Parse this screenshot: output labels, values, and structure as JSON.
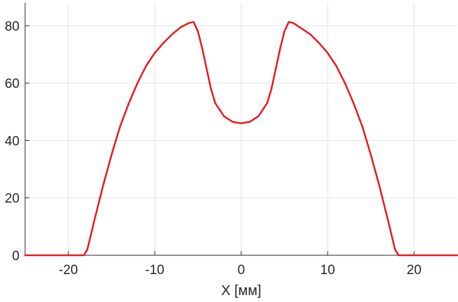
{
  "chart_data": {
    "type": "line",
    "title": "",
    "xlabel": "X [мм]",
    "ylabel": "",
    "xlim": [
      -25,
      25
    ],
    "ylim": [
      0,
      88
    ],
    "grid": true,
    "legend": "none",
    "xticks": [
      -20,
      -10,
      0,
      10,
      20
    ],
    "xtick_labels": [
      "-20",
      "-10",
      "0",
      "10",
      "20"
    ],
    "yticks": [
      0,
      20,
      40,
      60,
      80
    ],
    "ytick_labels": [
      "0",
      "20",
      "40",
      "60",
      "80"
    ],
    "colors": {
      "series": "#e8191e",
      "grid": "#e3e3e3",
      "axes": "#262626"
    },
    "series": [
      {
        "x": [
          -25,
          -18.2,
          -17.8,
          -17,
          -16,
          -15,
          -14,
          -13,
          -12,
          -11,
          -10,
          -9,
          -8,
          -7,
          -6,
          -5.5,
          -5,
          -4.5,
          -4,
          -3.5,
          -3,
          -2,
          -1,
          0,
          1,
          2,
          3,
          3.5,
          4,
          4.5,
          5,
          5.5,
          6,
          7,
          8,
          9,
          10,
          11,
          12,
          13,
          14,
          15,
          16,
          17,
          17.8,
          18.2,
          25
        ],
        "y": [
          0,
          0,
          2,
          12,
          24,
          35,
          45,
          53,
          60,
          66,
          70.5,
          74,
          77,
          79.5,
          81,
          81.3,
          78,
          72,
          65,
          58,
          53,
          48.5,
          46.5,
          46,
          46.5,
          48.5,
          53,
          58,
          65,
          72,
          78,
          81.3,
          81,
          79,
          77,
          74,
          70.5,
          66,
          60,
          53,
          45,
          35,
          24,
          12,
          2,
          0,
          0
        ]
      }
    ]
  }
}
